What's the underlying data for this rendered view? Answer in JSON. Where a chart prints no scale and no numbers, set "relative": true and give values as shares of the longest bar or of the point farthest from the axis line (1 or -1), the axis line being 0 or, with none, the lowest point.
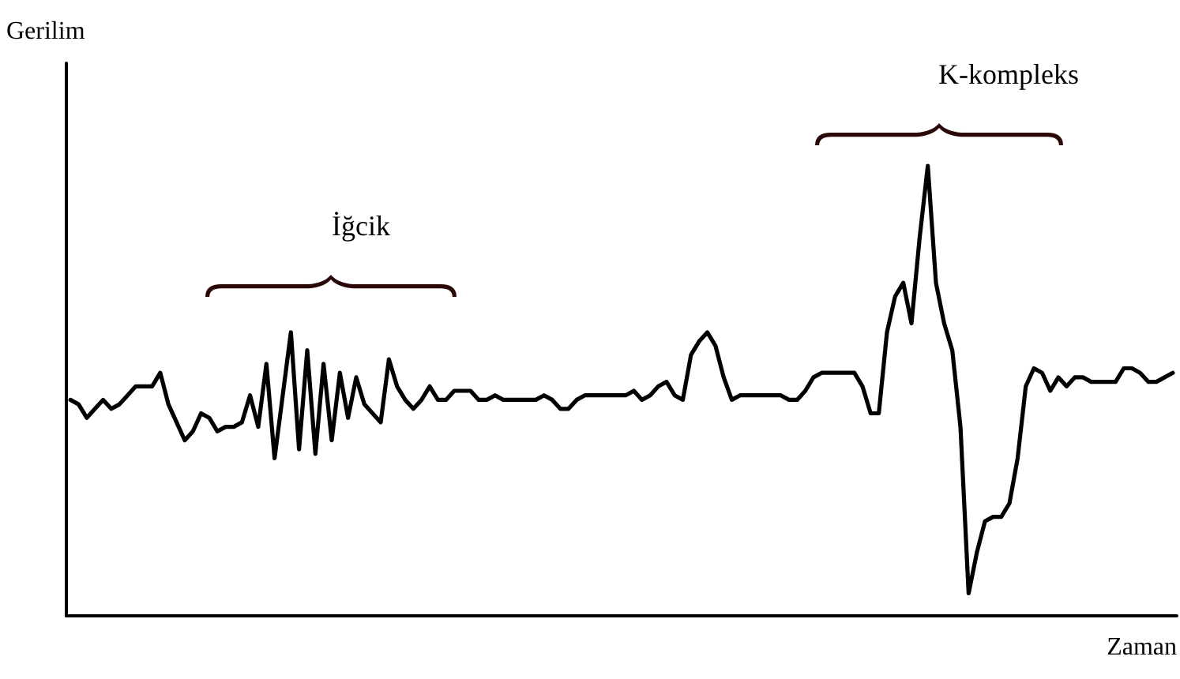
{
  "chart_data": {
    "type": "line",
    "relative": true,
    "xlabel": "Zaman",
    "ylabel": "Gerilim",
    "annotations": [
      "İğcik",
      "K-kompleks"
    ],
    "grid": false,
    "line_style": "solid",
    "categories": [
      null,
      null,
      null,
      null,
      null,
      null,
      null,
      null,
      null,
      null,
      null,
      null,
      null,
      null,
      null,
      null,
      null,
      null,
      null,
      null,
      null,
      null,
      null,
      null,
      null,
      null,
      null,
      null,
      null,
      null,
      null,
      null,
      null,
      null,
      null,
      null,
      null,
      null,
      null,
      null,
      null,
      null,
      null,
      null,
      null,
      null,
      null,
      null,
      null,
      null,
      null,
      null,
      null,
      null,
      null,
      null,
      null,
      null,
      null,
      null,
      null,
      null,
      null,
      null,
      null,
      null,
      null,
      null,
      null,
      null,
      null,
      null,
      null,
      null,
      null,
      null,
      null,
      null,
      null,
      null,
      null,
      null,
      null,
      null,
      null,
      null,
      null,
      null,
      null,
      null,
      null,
      null,
      null,
      null,
      null,
      null,
      null,
      null,
      null,
      null,
      null,
      null,
      null,
      null,
      null,
      null,
      null,
      null,
      null,
      null,
      null,
      null,
      null,
      null,
      null,
      null,
      null,
      null,
      null,
      null,
      null,
      null,
      null,
      null,
      null,
      null,
      null,
      null,
      null,
      null,
      null,
      null,
      null,
      null,
      null,
      null
    ],
    "series": [
      {
        "color": "#000000",
        "values": [
          0.48,
          0.47,
          0.44,
          0.46,
          0.48,
          0.46,
          0.47,
          0.49,
          0.51,
          0.51,
          0.51,
          0.54,
          0.47,
          0.43,
          0.39,
          0.41,
          0.45,
          0.44,
          0.41,
          0.42,
          0.42,
          0.43,
          0.49,
          0.42,
          0.56,
          0.35,
          0.49,
          0.63,
          0.37,
          0.59,
          0.36,
          0.56,
          0.39,
          0.54,
          0.44,
          0.53,
          0.47,
          0.45,
          0.43,
          0.57,
          0.51,
          0.48,
          0.46,
          0.48,
          0.51,
          0.48,
          0.48,
          0.5,
          0.5,
          0.5,
          0.48,
          0.48,
          0.49,
          0.48,
          0.48,
          0.48,
          0.48,
          0.48,
          0.49,
          0.48,
          0.46,
          0.46,
          0.48,
          0.49,
          0.49,
          0.49,
          0.49,
          0.49,
          0.49,
          0.5,
          0.48,
          0.49,
          0.51,
          0.52,
          0.49,
          0.48,
          0.58,
          0.61,
          0.63,
          0.6,
          0.53,
          0.48,
          0.49,
          0.49,
          0.49,
          0.49,
          0.49,
          0.49,
          0.48,
          0.48,
          0.5,
          0.53,
          0.54,
          0.54,
          0.54,
          0.54,
          0.54,
          0.51,
          0.45,
          0.45,
          0.63,
          0.71,
          0.74,
          0.65,
          0.84,
          1.0,
          0.74,
          0.65,
          0.59,
          0.42,
          0.05,
          0.14,
          0.21,
          0.22,
          0.22,
          0.25,
          0.35,
          0.51,
          0.55,
          0.54,
          0.5,
          0.53,
          0.51,
          0.53,
          0.53,
          0.52,
          0.52,
          0.52,
          0.52,
          0.55,
          0.55,
          0.54,
          0.52,
          0.52,
          0.53,
          0.54
        ]
      }
    ]
  }
}
